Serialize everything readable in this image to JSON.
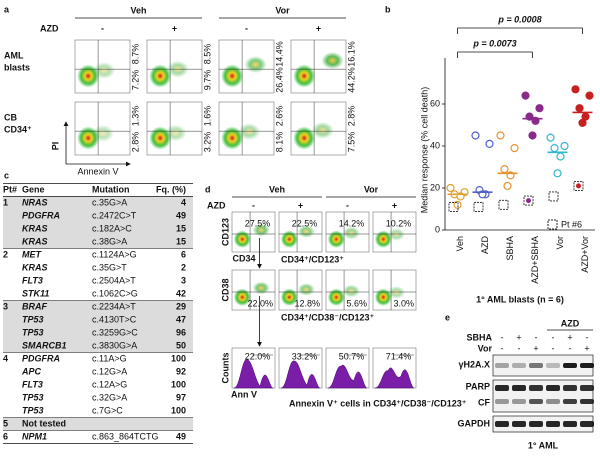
{
  "panel_a": {
    "letter": "a",
    "treatment": "AZD",
    "groups": [
      "Veh",
      "Vor"
    ],
    "signs": [
      "-",
      "+",
      "-",
      "+"
    ],
    "rows": [
      {
        "label": [
          "AML",
          "blasts"
        ],
        "percents": [
          [
            "8.7%",
            "7.2%"
          ],
          [
            "8.5%",
            "9.7%"
          ],
          [
            "14.4%",
            "26.4%"
          ],
          [
            "16.1%",
            "44.2%"
          ]
        ]
      },
      {
        "label": [
          "CB",
          "CD34⁺"
        ],
        "percents": [
          [
            "1.3%",
            "2.8%"
          ],
          [
            "1.6%",
            "3.2%"
          ],
          [
            "2.6%",
            "8.1%"
          ],
          [
            "2.8%",
            "7.5%"
          ]
        ]
      }
    ],
    "y_axis": "PI",
    "x_axis": "Annexin V"
  },
  "chart_data": {
    "type": "dot",
    "letter": "b",
    "y_label": "Median response (% cell death)",
    "categories": [
      "Veh",
      "AZD",
      "SBHA",
      "AZD+SBHA",
      "Vor",
      "AZD+Vor"
    ],
    "values": [
      [
        20,
        18,
        17,
        16,
        12,
        11
      ],
      [
        45,
        41,
        19,
        17,
        17,
        11
      ],
      [
        45,
        39,
        29,
        26,
        21,
        12
      ],
      [
        64,
        58,
        54,
        52,
        45,
        14
      ],
      [
        44,
        40,
        39,
        35,
        27,
        16
      ],
      [
        67,
        64,
        58,
        54,
        51,
        21
      ]
    ],
    "medians": [
      17,
      18,
      27,
      53,
      37,
      56
    ],
    "colors": [
      "#e0a030",
      "#5060c8",
      "#e89030",
      "#8a2a8a",
      "#30b8d0",
      "#c82020"
    ],
    "filled": [
      false,
      false,
      false,
      true,
      false,
      true
    ],
    "ylim": [
      0,
      80
    ],
    "yticks": [
      0,
      20,
      40,
      60
    ],
    "annotations": [
      "p = 0.0073",
      "p = 0.0008"
    ],
    "patient_note": "Pt #6",
    "footnote": "1° AML blasts (n = 6)"
  },
  "panel_c": {
    "letter": "c",
    "header": [
      "Pt#",
      "Gene",
      "Mutation",
      "Fq. (%)"
    ],
    "rows": [
      {
        "pt": "1",
        "gene": "NRAS",
        "mutation": "c.35G>A",
        "fq": 4
      },
      {
        "gene": "PDGFRA",
        "mutation": "c.2472C>T",
        "fq": 49
      },
      {
        "gene": "KRAS",
        "mutation": "c.182A>C",
        "fq": 15
      },
      {
        "gene": "KRAS",
        "mutation": "c.38G>A",
        "fq": 15
      },
      {
        "pt": "2",
        "gene": "MET",
        "mutation": "c.1124A>G",
        "fq": 6
      },
      {
        "gene": "KRAS",
        "mutation": "c.35G>T",
        "fq": 2
      },
      {
        "gene": "FLT3",
        "mutation": "c.2504A>T",
        "fq": 3,
        "color": "#e02020"
      },
      {
        "gene": "STK11",
        "mutation": "c.1062C>G",
        "fq": 42
      },
      {
        "pt": "3",
        "gene": "BRAF",
        "mutation": "c.2234A>T",
        "fq": 29
      },
      {
        "gene": "TP53",
        "mutation": "c.4130T>C",
        "fq": 47,
        "color": "#e02020"
      },
      {
        "gene": "TP53",
        "mutation": "c.3259G>C",
        "fq": 96,
        "color": "#e02020"
      },
      {
        "gene": "SMARCB1",
        "mutation": "c.3830G>A",
        "fq": 50
      },
      {
        "pt": "4",
        "gene": "PDGFRA",
        "mutation": "c.11A>G",
        "fq": 100
      },
      {
        "gene": "APC",
        "mutation": "c.12G>A",
        "fq": 92
      },
      {
        "gene": "FLT3",
        "mutation": "c.12A>G",
        "fq": 100,
        "color": "#e02020"
      },
      {
        "gene": "TP53",
        "mutation": "c.32G>A",
        "fq": 97,
        "color": "#e02020"
      },
      {
        "gene": "TP53",
        "mutation": "c.7G>C",
        "fq": 100,
        "color": "#e02020"
      },
      {
        "pt": "5",
        "gene": "Not tested"
      },
      {
        "pt": "6",
        "gene": "NPM1",
        "mutation": "c.863_864TCTG",
        "fq": 49,
        "color": "#1a3ad0"
      }
    ]
  },
  "panel_d": {
    "letter": "d",
    "treatment": "AZD",
    "groups": [
      "Veh",
      "Vor"
    ],
    "signs": [
      "-",
      "+",
      "-",
      "+"
    ],
    "rows": [
      {
        "y_axis": "CD123",
        "x_axis": "CD34",
        "percents": [
          "27.5%",
          "22.5%",
          "14.2%",
          "10.2%"
        ],
        "label": "CD34⁺/CD123⁺"
      },
      {
        "y_axis": "CD38",
        "percents": [
          "22.0%",
          "12.8%",
          "5.6%",
          "3.0%"
        ],
        "label": "CD34⁺/CD38⁻/CD123⁺"
      },
      {
        "y_axis": "Counts",
        "x_axis": "Ann V",
        "percents": [
          "22.0%",
          "33.2%",
          "50.7%",
          "71.4%"
        ],
        "label": "Annexin V⁺ cells in CD34⁺/CD38⁻/CD123⁺"
      }
    ]
  },
  "panel_e": {
    "letter": "e",
    "treatment": "AZD",
    "rows": [
      {
        "label": "SBHA",
        "signs": [
          "-",
          "+",
          "-",
          "-",
          "+",
          "-"
        ]
      },
      {
        "label": "Vor",
        "signs": [
          "-",
          "-",
          "+",
          "-",
          "-",
          "+"
        ]
      }
    ],
    "blots": [
      "γH2A.X",
      "PARP",
      "CF",
      "GAPDH"
    ],
    "footnote": "1° AML"
  }
}
